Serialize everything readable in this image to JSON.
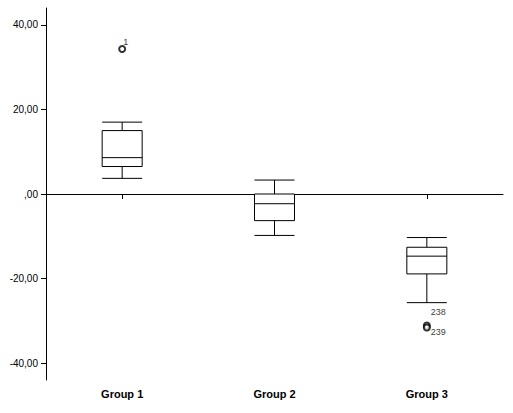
{
  "chart_data": {
    "type": "boxplot",
    "categories": [
      "Group 1",
      "Group 2",
      "Group 3"
    ],
    "boxes": [
      [
        3.7,
        6.5,
        8.6,
        15,
        17
      ],
      [
        -9.8,
        -6.3,
        -2.3,
        0,
        3.3
      ],
      [
        -25.7,
        -18.9,
        -14.7,
        -12.6,
        -10.3
      ]
    ],
    "outliers": [
      {
        "category": "Group 1",
        "value": 34.3,
        "label": "1"
      },
      {
        "category": "Group 3",
        "value": -31.1,
        "label": "238"
      },
      {
        "category": "Group 3",
        "value": -31.6,
        "label": "239"
      }
    ],
    "ylim": [
      -44,
      44
    ],
    "yticks": [
      {
        "value": -40,
        "label": "-40,00"
      },
      {
        "value": -20,
        "label": "-20,00"
      },
      {
        "value": 0,
        "label": ",00"
      },
      {
        "value": 20,
        "label": "20,00"
      },
      {
        "value": 40,
        "label": "40,00"
      }
    ],
    "color": "#ffffff",
    "marker": "circle",
    "grid": false
  }
}
